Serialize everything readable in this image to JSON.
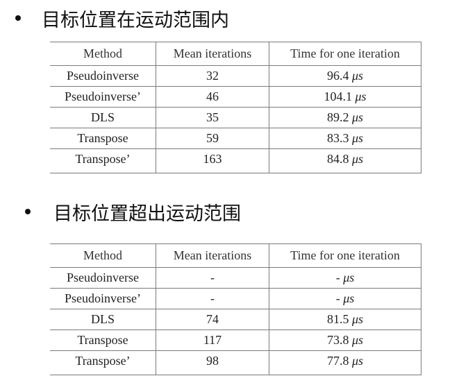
{
  "section1": {
    "heading": "目标位置在运动范围内",
    "table": {
      "columns": [
        "Method",
        "Mean iterations",
        "Time for one iteration"
      ],
      "rows": [
        {
          "method": "Pseudoinverse",
          "iterations": "32",
          "time": "96.4",
          "unit": "μs"
        },
        {
          "method": "Pseudoinverse’",
          "iterations": "46",
          "time": "104.1",
          "unit": "μs"
        },
        {
          "method": "DLS",
          "iterations": "35",
          "time": "89.2",
          "unit": "μs"
        },
        {
          "method": "Transpose",
          "iterations": "59",
          "time": "83.3",
          "unit": "μs"
        },
        {
          "method": "Transpose’",
          "iterations": "163",
          "time": "84.8",
          "unit": "μs"
        }
      ]
    }
  },
  "section2": {
    "heading": "目标位置超出运动范围",
    "table": {
      "columns": [
        "Method",
        "Mean iterations",
        "Time for one iteration"
      ],
      "rows": [
        {
          "method": "Pseudoinverse",
          "iterations": "-",
          "time": "-",
          "unit": "μs"
        },
        {
          "method": "Pseudoinverse’",
          "iterations": "-",
          "time": "-",
          "unit": "μs"
        },
        {
          "method": "DLS",
          "iterations": "74",
          "time": "81.5",
          "unit": "μs"
        },
        {
          "method": "Transpose",
          "iterations": "117",
          "time": "73.8",
          "unit": "μs"
        },
        {
          "method": "Transpose’",
          "iterations": "98",
          "time": "77.8",
          "unit": "μs"
        }
      ]
    }
  }
}
